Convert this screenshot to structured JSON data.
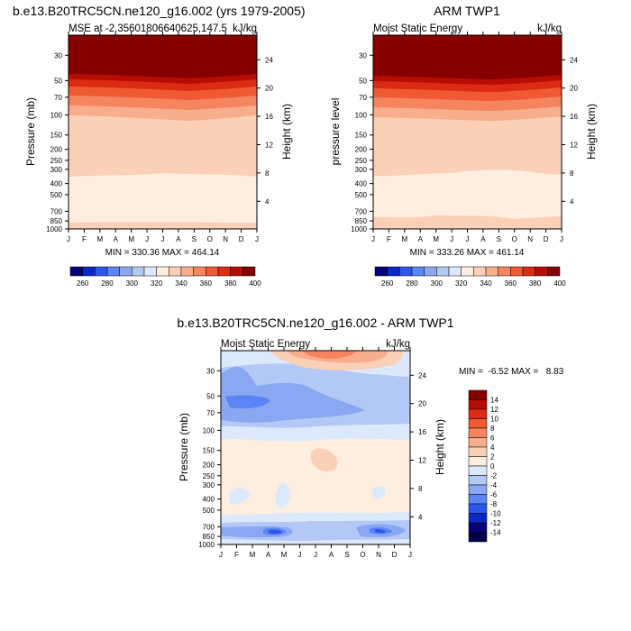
{
  "chart_data": [
    {
      "type": "heatmap",
      "panel": "model",
      "title": "b.e13.B20TRC5CN.ne120_g16.002 (yrs 1979-2005)",
      "subtitle_left": "MSE at -2.35601806640625,147.5",
      "subtitle_right": "kJ/kg",
      "xlabel": "",
      "ylabel": "Pressure (mb)",
      "ylabel_right": "Height (km)",
      "x_ticks": [
        "J",
        "F",
        "M",
        "A",
        "M",
        "J",
        "J",
        "A",
        "S",
        "O",
        "N",
        "D",
        "J"
      ],
      "y_ticks": [
        "30",
        "50",
        "70",
        "100",
        "150",
        "200",
        "250",
        "300",
        "400",
        "500",
        "700",
        "850",
        "1000"
      ],
      "y_right_ticks": [
        "24",
        "20",
        "16",
        "12",
        "8",
        "4"
      ],
      "ylim": [
        1000,
        20
      ],
      "y_scale": "log",
      "stats": "MIN = 330.36 MAX = 464.14",
      "colorbar": {
        "orientation": "horizontal",
        "labels": [
          "260",
          "280",
          "300",
          "320",
          "340",
          "360",
          "380",
          "400"
        ],
        "colors": [
          "#08007a",
          "#0b27c8",
          "#2a58ee",
          "#5b84f4",
          "#8aa8f2",
          "#b3c8f5",
          "#dce9fc",
          "#fdeedf",
          "#fbd0b7",
          "#f8ad8d",
          "#f5855f",
          "#f05a33",
          "#dd2a12",
          "#b70d04",
          "#870000"
        ]
      },
      "contour_levels": [
        340,
        350,
        360,
        370,
        380,
        390,
        400
      ]
    },
    {
      "type": "heatmap",
      "panel": "obs",
      "title": "ARM TWP1",
      "subtitle_left": "Moist Static Energy",
      "subtitle_right": "kJ/kg",
      "xlabel": "",
      "ylabel": "pressure level",
      "ylabel_right": "Height (km)",
      "x_ticks": [
        "J",
        "F",
        "M",
        "A",
        "M",
        "J",
        "J",
        "A",
        "S",
        "O",
        "N",
        "D",
        "J"
      ],
      "y_ticks": [
        "30",
        "50",
        "70",
        "100",
        "150",
        "200",
        "250",
        "300",
        "400",
        "500",
        "700",
        "850",
        "1000"
      ],
      "y_right_ticks": [
        "24",
        "20",
        "16",
        "12",
        "8",
        "4"
      ],
      "ylim": [
        1000,
        20
      ],
      "y_scale": "log",
      "stats": "MIN = 333.26 MAX = 461.14",
      "colorbar": {
        "orientation": "horizontal",
        "labels": [
          "260",
          "280",
          "300",
          "320",
          "340",
          "360",
          "380",
          "400"
        ],
        "colors": [
          "#08007a",
          "#0b27c8",
          "#2a58ee",
          "#5b84f4",
          "#8aa8f2",
          "#b3c8f5",
          "#dce9fc",
          "#fdeedf",
          "#fbd0b7",
          "#f8ad8d",
          "#f5855f",
          "#f05a33",
          "#dd2a12",
          "#b70d04",
          "#870000"
        ]
      },
      "contour_levels": [
        340,
        350,
        360,
        370,
        380,
        390,
        400
      ]
    },
    {
      "type": "heatmap",
      "panel": "difference",
      "title": "b.e13.B20TRC5CN.ne120_g16.002 - ARM TWP1",
      "subtitle_left": "Moist Static Energy",
      "subtitle_right": "kJ/kg",
      "xlabel": "",
      "ylabel": "Pressure (mb)",
      "ylabel_right": "Height (km)",
      "x_ticks": [
        "J",
        "F",
        "M",
        "A",
        "M",
        "J",
        "J",
        "A",
        "S",
        "O",
        "N",
        "D",
        "J"
      ],
      "y_ticks": [
        "30",
        "50",
        "70",
        "100",
        "150",
        "200",
        "250",
        "300",
        "400",
        "500",
        "700",
        "850",
        "1000"
      ],
      "y_right_ticks": [
        "24",
        "20",
        "16",
        "12",
        "8",
        "4"
      ],
      "ylim": [
        1000,
        20
      ],
      "y_scale": "log",
      "stats": "MIN =  -6.52 MAX =   8.83",
      "colorbar": {
        "orientation": "vertical",
        "labels": [
          "14",
          "12",
          "10",
          "8",
          "6",
          "4",
          "2",
          "0",
          "-2",
          "-4",
          "-6",
          "-8",
          "-10",
          "-12",
          "-14"
        ],
        "colors": [
          "#870000",
          "#b70d04",
          "#dd2a12",
          "#f05a33",
          "#f5855f",
          "#f8ad8d",
          "#fbd0b7",
          "#fdeedf",
          "#dce9fc",
          "#b3c8f5",
          "#8aa8f2",
          "#5b84f4",
          "#2a58ee",
          "#0b27c8",
          "#08007a",
          "#05004a"
        ]
      }
    }
  ]
}
